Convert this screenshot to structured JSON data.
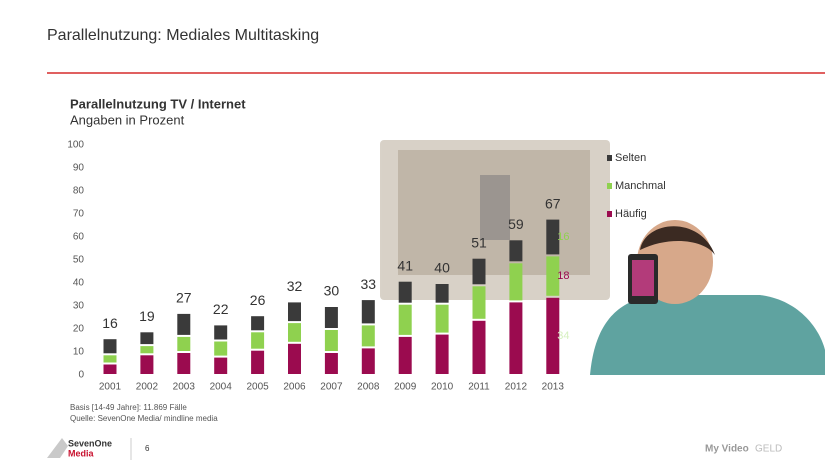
{
  "header": {
    "title": "Parallelnutzung: Mediales Multitasking"
  },
  "chart_data": {
    "type": "stacked-bar",
    "title": "Parallelnutzung TV / Internet",
    "subtitle": "Angaben in Prozent",
    "categories": [
      "2001",
      "2002",
      "2003",
      "2004",
      "2005",
      "2006",
      "2007",
      "2008",
      "2009",
      "2010",
      "2011",
      "2012",
      "2013"
    ],
    "series": [
      {
        "name": "Häufig",
        "color": "#9b0b4f",
        "values": [
          5,
          9,
          10,
          8,
          11,
          14,
          10,
          12,
          17,
          18,
          24,
          32,
          34
        ]
      },
      {
        "name": "Manchmal",
        "color": "#8fd14f",
        "values": [
          4,
          4,
          7,
          7,
          8,
          9,
          10,
          10,
          14,
          13,
          15,
          17,
          18
        ]
      },
      {
        "name": "Selten",
        "color": "#3a3a3a",
        "values": [
          7,
          6,
          10,
          7,
          7,
          9,
          10,
          11,
          10,
          9,
          12,
          10,
          16
        ]
      }
    ],
    "totals": [
      16,
      19,
      27,
      22,
      26,
      32,
      30,
      33,
      41,
      40,
      51,
      59,
      67
    ],
    "ylim": [
      0,
      100
    ],
    "yticks": [
      0,
      10,
      20,
      30,
      40,
      50,
      60,
      70,
      80,
      90,
      100
    ],
    "notes": [
      "Basis [14-49 Jahre]: 11.869 Fälle",
      "Quelle: SevenOne Media/ mindline media"
    ]
  },
  "footer": {
    "logo": [
      "SevenOne",
      "Media"
    ],
    "page": "6",
    "brands": [
      "My Video",
      "GELD"
    ]
  }
}
